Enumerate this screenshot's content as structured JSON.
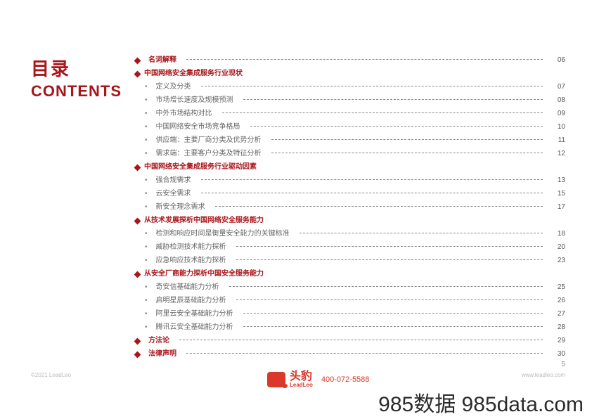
{
  "colors": {
    "accent": "#a8151a",
    "logo": "#d9382a",
    "muted": "#666",
    "dots": "#888",
    "footer": "#bbb"
  },
  "title": {
    "zh": "目录",
    "en": "CONTENTS"
  },
  "toc": [
    {
      "type": "section",
      "label": "名词解释",
      "page": "06"
    },
    {
      "type": "section",
      "label": "中国网络安全集成服务行业现状"
    },
    {
      "type": "sub",
      "label": "定义及分类",
      "page": "07"
    },
    {
      "type": "sub",
      "label": "市场增长速度及规模预测",
      "page": "08"
    },
    {
      "type": "sub",
      "label": "中外市场结构对比",
      "page": "09"
    },
    {
      "type": "sub",
      "label": "中国网络安全市场竞争格局",
      "page": "10"
    },
    {
      "type": "sub",
      "label": "供应端：主要厂商分类及优势分析",
      "page": "11"
    },
    {
      "type": "sub",
      "label": "需求端：主要客户分类及特征分析",
      "page": "12"
    },
    {
      "type": "section",
      "label": "中国网络安全集成服务行业驱动因素"
    },
    {
      "type": "sub",
      "label": "强合规需求",
      "page": "13"
    },
    {
      "type": "sub",
      "label": "云安全需求",
      "page": "15"
    },
    {
      "type": "sub",
      "label": "新安全理念需求",
      "page": "17"
    },
    {
      "type": "section",
      "label": "从技术发展探析中国网络安全服务能力"
    },
    {
      "type": "sub",
      "label": "检测和响应时间是衡量安全能力的关键标准",
      "page": "18"
    },
    {
      "type": "sub",
      "label": "威胁检测技术能力探析",
      "page": "20"
    },
    {
      "type": "sub",
      "label": "应急响应技术能力探析",
      "page": "23"
    },
    {
      "type": "section",
      "label": "从安全厂商能力探析中国安全服务能力"
    },
    {
      "type": "sub",
      "label": "奇安信基础能力分析",
      "page": "25"
    },
    {
      "type": "sub",
      "label": "启明星辰基础能力分析",
      "page": "26"
    },
    {
      "type": "sub",
      "label": "阿里云安全基础能力分析",
      "page": "27"
    },
    {
      "type": "sub",
      "label": "腾讯云安全基础能力分析",
      "page": "28"
    },
    {
      "type": "section",
      "label": "方法论",
      "page": "29"
    },
    {
      "type": "section",
      "label": "法律声明",
      "page": "30"
    }
  ],
  "footer": {
    "left": "©2021 LeadLeo",
    "right": "www.leadleo.com",
    "pageNumber": "5"
  },
  "logo": {
    "zh": "头豹",
    "en": "LeadLeo",
    "phone": "400-072-5588"
  },
  "watermark": "985数据 985data.com"
}
